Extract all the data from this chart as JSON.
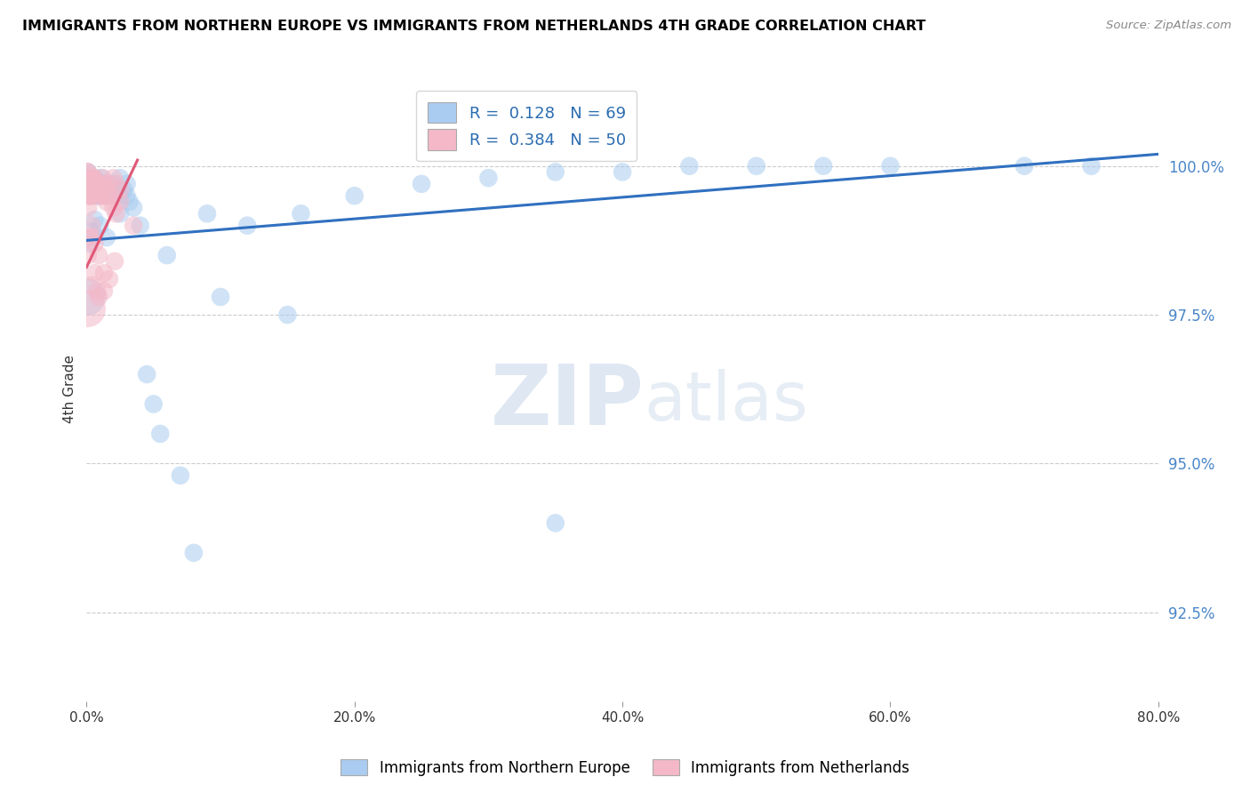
{
  "title": "IMMIGRANTS FROM NORTHERN EUROPE VS IMMIGRANTS FROM NETHERLANDS 4TH GRADE CORRELATION CHART",
  "source": "Source: ZipAtlas.com",
  "xlabel_ticks": [
    "0.0%",
    "20.0%",
    "40.0%",
    "60.0%",
    "80.0%"
  ],
  "xlabel_tick_vals": [
    0.0,
    20.0,
    40.0,
    60.0,
    80.0
  ],
  "ylabel_ticks": [
    "100.0%",
    "97.5%",
    "95.0%",
    "92.5%"
  ],
  "ylabel_tick_vals": [
    100.0,
    97.5,
    95.0,
    92.5
  ],
  "xlim": [
    0.0,
    80.0
  ],
  "ylim": [
    91.0,
    101.5
  ],
  "blue_label": "Immigrants from Northern Europe",
  "pink_label": "Immigrants from Netherlands",
  "blue_R": 0.128,
  "blue_N": 69,
  "pink_R": 0.384,
  "pink_N": 50,
  "blue_color": "#aaccf0",
  "pink_color": "#f4b8c8",
  "blue_line_color": "#3070c0",
  "pink_line_color": "#e05878",
  "watermark_zip": "ZIP",
  "watermark_atlas": "atlas",
  "blue_trend_x0": 0.0,
  "blue_trend_y0": 98.75,
  "blue_trend_x1": 80.0,
  "blue_trend_y1": 100.2,
  "pink_trend_x0": 0.0,
  "pink_trend_y0": 98.3,
  "pink_trend_x1": 3.8,
  "pink_trend_y1": 100.1,
  "blue_x": [
    0.1,
    0.15,
    0.2,
    0.25,
    0.3,
    0.35,
    0.4,
    0.5,
    0.6,
    0.7,
    0.8,
    0.9,
    1.0,
    1.1,
    1.2,
    1.3,
    1.5,
    1.6,
    1.8,
    2.0,
    2.2,
    2.5,
    2.8,
    3.0,
    3.2,
    3.5,
    0.1,
    0.2,
    0.3,
    0.5,
    0.8,
    1.0,
    1.5,
    2.0,
    2.5,
    3.0,
    0.2,
    0.4,
    0.6,
    1.0,
    1.5,
    2.5,
    4.0,
    6.0,
    9.0,
    12.0,
    16.0,
    20.0,
    25.0,
    30.0,
    35.0,
    40.0,
    50.0,
    60.0,
    70.0,
    75.0,
    0.05,
    0.08,
    0.12,
    4.5,
    7.0,
    35.0,
    10.0,
    15.0,
    5.0,
    5.5,
    8.0,
    45.0,
    55.0
  ],
  "blue_y": [
    99.7,
    99.8,
    99.6,
    99.7,
    99.8,
    99.5,
    99.7,
    99.6,
    99.8,
    99.5,
    99.6,
    99.7,
    99.5,
    99.8,
    99.6,
    99.7,
    99.5,
    99.6,
    99.5,
    99.7,
    99.6,
    99.5,
    99.6,
    99.5,
    99.4,
    99.3,
    99.9,
    99.8,
    99.7,
    99.6,
    99.5,
    99.7,
    99.5,
    99.6,
    99.8,
    99.7,
    98.7,
    98.9,
    99.1,
    99.0,
    98.8,
    99.2,
    99.0,
    98.5,
    99.2,
    99.0,
    99.2,
    99.5,
    99.7,
    99.8,
    99.9,
    99.9,
    100.0,
    100.0,
    100.0,
    100.0,
    99.8,
    99.6,
    99.5,
    96.5,
    94.8,
    94.0,
    97.8,
    97.5,
    96.0,
    95.5,
    93.5,
    100.0,
    100.0
  ],
  "blue_large_x": [
    0.05
  ],
  "blue_large_y": [
    97.8
  ],
  "pink_x": [
    0.1,
    0.2,
    0.3,
    0.4,
    0.5,
    0.6,
    0.8,
    1.0,
    1.2,
    1.4,
    1.6,
    1.8,
    2.0,
    2.2,
    2.5,
    0.05,
    0.15,
    0.25,
    0.35,
    0.55,
    0.75,
    1.1,
    1.5,
    2.0,
    0.1,
    0.2,
    0.4,
    0.6,
    0.9,
    1.3,
    1.7,
    2.1,
    0.08,
    0.18,
    0.3,
    0.5,
    0.7,
    1.0,
    1.5,
    2.5,
    0.12,
    0.22,
    0.45,
    3.5,
    0.6,
    2.2,
    0.9,
    1.3,
    0.4,
    0.8
  ],
  "pink_y": [
    99.8,
    99.6,
    99.7,
    99.5,
    99.8,
    99.6,
    99.7,
    99.5,
    99.8,
    99.6,
    99.7,
    99.5,
    99.8,
    99.7,
    99.6,
    99.9,
    99.7,
    99.5,
    99.8,
    99.6,
    99.7,
    99.5,
    99.4,
    99.3,
    98.5,
    98.8,
    99.0,
    98.2,
    97.8,
    97.9,
    98.1,
    98.4,
    99.9,
    99.7,
    99.5,
    99.8,
    99.6,
    99.7,
    99.5,
    99.4,
    99.3,
    99.5,
    98.8,
    99.0,
    98.7,
    99.2,
    98.5,
    98.2,
    98.0,
    97.9
  ],
  "pink_large_x": [
    0.05
  ],
  "pink_large_y": [
    97.6
  ]
}
